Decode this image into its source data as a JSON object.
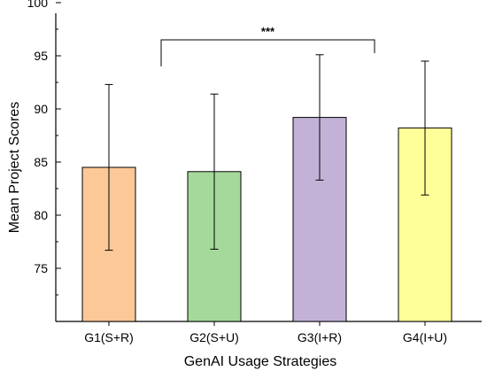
{
  "chart_data": {
    "type": "bar",
    "title": "",
    "xlabel": "GenAI Usage Strategies",
    "ylabel": "Mean Project Scores",
    "categories": [
      "G1(S+R)",
      "G2(S+U)",
      "G3(I+R)",
      "G4(I+U)"
    ],
    "values": [
      84.5,
      84.1,
      89.2,
      88.2
    ],
    "error_high": [
      92.3,
      91.4,
      95.1,
      94.5
    ],
    "error_low": [
      76.7,
      76.8,
      83.3,
      81.9
    ],
    "colors": [
      "#FCC898",
      "#A5D99B",
      "#C3B2D8",
      "#FFFF99"
    ],
    "ylim": [
      70,
      100
    ],
    "yticks": [
      75,
      80,
      85,
      90,
      95,
      100
    ],
    "grid": false,
    "legend": "none",
    "annotation": {
      "label": "***",
      "from_category": "G1(S+R)",
      "to_category": "G3(I+R)"
    }
  }
}
